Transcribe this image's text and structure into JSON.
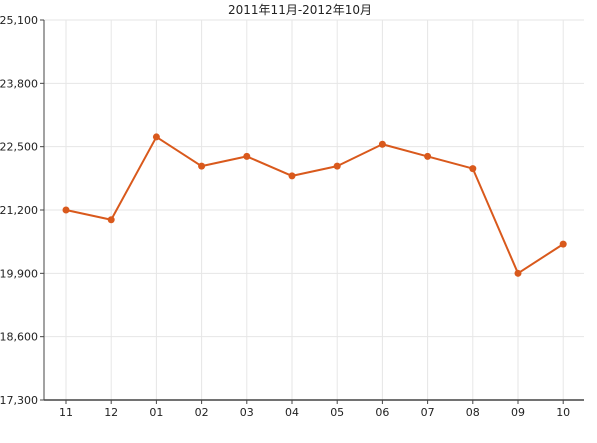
{
  "chart_data": {
    "type": "line",
    "title": "2011年11月-2012年10月",
    "categories": [
      "11",
      "12",
      "01",
      "02",
      "03",
      "04",
      "05",
      "06",
      "07",
      "08",
      "09",
      "10"
    ],
    "series": [
      {
        "values": [
          21200,
          21000,
          22700,
          22100,
          22300,
          21900,
          22100,
          22550,
          22300,
          22050,
          19900,
          20500
        ]
      }
    ],
    "ylim": [
      17300,
      25100
    ],
    "yticks": [
      17300,
      18600,
      19900,
      21200,
      22500,
      23800,
      25100
    ],
    "ytick_labels": [
      "17,300",
      "18,600",
      "19,900",
      "21,200",
      "22,500",
      "23,800",
      "25,100"
    ],
    "grid": true,
    "line_color": "#d9591c",
    "marker_color": "#d9591c",
    "grid_color": "#e6e6e6",
    "axis_color": "#444444"
  }
}
